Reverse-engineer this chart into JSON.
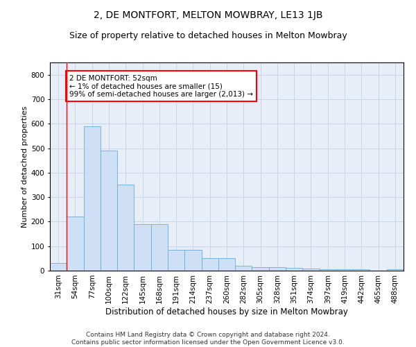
{
  "title": "2, DE MONTFORT, MELTON MOWBRAY, LE13 1JB",
  "subtitle": "Size of property relative to detached houses in Melton Mowbray",
  "xlabel": "Distribution of detached houses by size in Melton Mowbray",
  "ylabel": "Number of detached properties",
  "categories": [
    "31sqm",
    "54sqm",
    "77sqm",
    "100sqm",
    "122sqm",
    "145sqm",
    "168sqm",
    "191sqm",
    "214sqm",
    "237sqm",
    "260sqm",
    "282sqm",
    "305sqm",
    "328sqm",
    "351sqm",
    "374sqm",
    "397sqm",
    "419sqm",
    "442sqm",
    "465sqm",
    "488sqm"
  ],
  "values": [
    30,
    220,
    590,
    490,
    350,
    190,
    190,
    85,
    85,
    50,
    50,
    20,
    15,
    15,
    10,
    8,
    5,
    5,
    5,
    0,
    5
  ],
  "bar_color": "#cde0f5",
  "bar_edge_color": "#6aabd6",
  "grid_color": "#c8d4e8",
  "background_color": "#e8eef8",
  "red_line_x": 0.5,
  "annotation_text": "2 DE MONTFORT: 52sqm\n← 1% of detached houses are smaller (15)\n99% of semi-detached houses are larger (2,013) →",
  "annotation_box_color": "white",
  "annotation_box_edge_color": "red",
  "ylim": [
    0,
    850
  ],
  "yticks": [
    0,
    100,
    200,
    300,
    400,
    500,
    600,
    700,
    800
  ],
  "footer": "Contains HM Land Registry data © Crown copyright and database right 2024.\nContains public sector information licensed under the Open Government Licence v3.0.",
  "title_fontsize": 10,
  "subtitle_fontsize": 9,
  "xlabel_fontsize": 8.5,
  "ylabel_fontsize": 8,
  "tick_fontsize": 7.5,
  "annotation_fontsize": 7.5,
  "footer_fontsize": 6.5
}
